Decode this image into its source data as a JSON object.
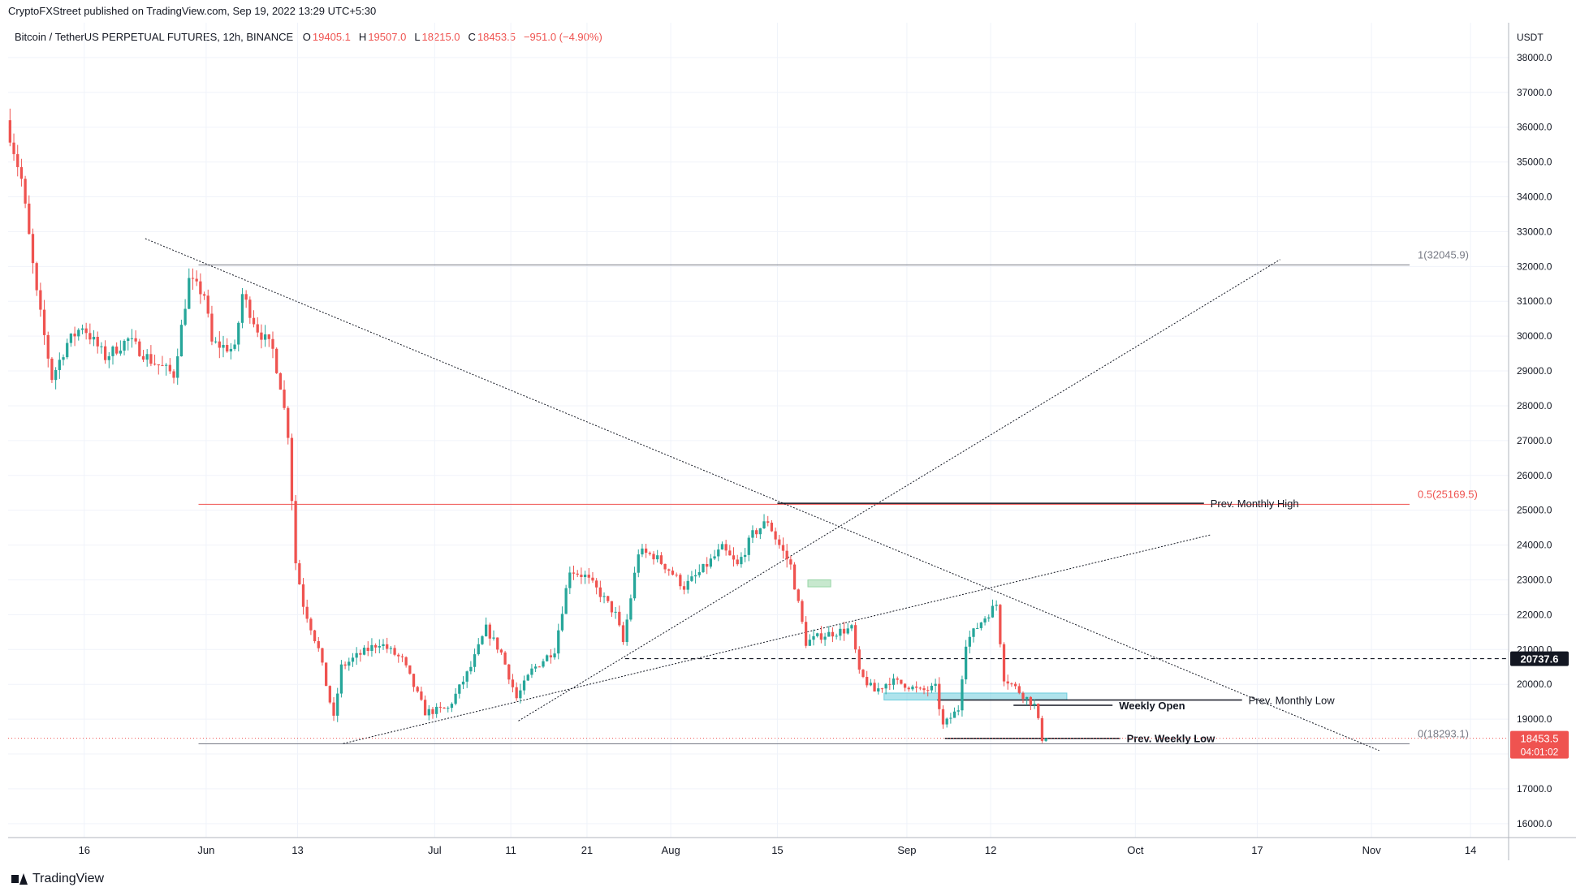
{
  "header": {
    "publisher": "CryptoFXStreet published on TradingView.com, Sep 19, 2022 13:29 UTC+5:30",
    "symbol": "Bitcoin / TetherUS PERPETUAL FUTURES, 12h, BINANCE",
    "ohlc": [
      {
        "label": "O",
        "value": "19405.1"
      },
      {
        "label": "H",
        "value": "19507.0"
      },
      {
        "label": "L",
        "value": "18215.0"
      },
      {
        "label": "C",
        "value": "18453.5"
      },
      {
        "label": "",
        "value": "−951.0 (−4.90%)"
      }
    ]
  },
  "footer": {
    "brand": "TradingView"
  },
  "colors": {
    "up": "#26a69a",
    "down": "#ef5350",
    "fib_half": "#ef5350",
    "grid": "#f0f3fa",
    "line": "#131722"
  },
  "chart_data": {
    "type": "candlestick",
    "currency_label": "USDT",
    "ylim": [
      15600,
      39000
    ],
    "xlim": [
      "2022-05-06",
      "2022-11-19"
    ],
    "y_ticks": [
      "16000.0",
      "17000.0",
      "18000.0",
      "19000.0",
      "20000.0",
      "21000.0",
      "22000.0",
      "23000.0",
      "24000.0",
      "25000.0",
      "26000.0",
      "27000.0",
      "28000.0",
      "29000.0",
      "30000.0",
      "31000.0",
      "32000.0",
      "33000.0",
      "34000.0",
      "35000.0",
      "36000.0",
      "37000.0",
      "38000.0"
    ],
    "x_ticks": [
      {
        "label": "16",
        "date": "2022-05-16"
      },
      {
        "label": "Jun",
        "date": "2022-06-01"
      },
      {
        "label": "13",
        "date": "2022-06-13"
      },
      {
        "label": "Jul",
        "date": "2022-07-01"
      },
      {
        "label": "11",
        "date": "2022-07-11"
      },
      {
        "label": "21",
        "date": "2022-07-21"
      },
      {
        "label": "Aug",
        "date": "2022-08-01"
      },
      {
        "label": "15",
        "date": "2022-08-15"
      },
      {
        "label": "Sep",
        "date": "2022-09-01"
      },
      {
        "label": "12",
        "date": "2022-09-12"
      },
      {
        "label": "Oct",
        "date": "2022-10-01"
      },
      {
        "label": "17",
        "date": "2022-10-17"
      },
      {
        "label": "Nov",
        "date": "2022-11-01"
      },
      {
        "label": "14",
        "date": "2022-11-14"
      }
    ],
    "price_path": [
      [
        "2022-05-06",
        36200
      ],
      [
        "2022-05-08",
        34500
      ],
      [
        "2022-05-10",
        31200
      ],
      [
        "2022-05-12",
        28800
      ],
      [
        "2022-05-14",
        29800
      ],
      [
        "2022-05-16",
        30300
      ],
      [
        "2022-05-19",
        29400
      ],
      [
        "2022-05-22",
        29900
      ],
      [
        "2022-05-25",
        29300
      ],
      [
        "2022-05-28",
        28900
      ],
      [
        "2022-05-30",
        31600
      ],
      [
        "2022-06-01",
        31200
      ],
      [
        "2022-06-02",
        29800
      ],
      [
        "2022-06-05",
        29600
      ],
      [
        "2022-06-06",
        31200
      ],
      [
        "2022-06-08",
        30200
      ],
      [
        "2022-06-10",
        29600
      ],
      [
        "2022-06-11",
        28600
      ],
      [
        "2022-06-12",
        27200
      ],
      [
        "2022-06-13",
        23500
      ],
      [
        "2022-06-14",
        22300
      ],
      [
        "2022-06-16",
        21000
      ],
      [
        "2022-06-18",
        19000
      ],
      [
        "2022-06-19",
        20500
      ],
      [
        "2022-06-21",
        20800
      ],
      [
        "2022-06-24",
        21200
      ],
      [
        "2022-06-27",
        20700
      ],
      [
        "2022-06-30",
        19200
      ],
      [
        "2022-07-03",
        19300
      ],
      [
        "2022-07-06",
        20500
      ],
      [
        "2022-07-08",
        21600
      ],
      [
        "2022-07-10",
        20900
      ],
      [
        "2022-07-12",
        19600
      ],
      [
        "2022-07-14",
        20400
      ],
      [
        "2022-07-17",
        21000
      ],
      [
        "2022-07-19",
        23300
      ],
      [
        "2022-07-21",
        23100
      ],
      [
        "2022-07-23",
        22600
      ],
      [
        "2022-07-25",
        22000
      ],
      [
        "2022-07-26",
        21200
      ],
      [
        "2022-07-28",
        23800
      ],
      [
        "2022-07-30",
        23700
      ],
      [
        "2022-08-01",
        23300
      ],
      [
        "2022-08-03",
        22800
      ],
      [
        "2022-08-05",
        23200
      ],
      [
        "2022-08-08",
        23900
      ],
      [
        "2022-08-10",
        23400
      ],
      [
        "2022-08-12",
        24300
      ],
      [
        "2022-08-14",
        24700
      ],
      [
        "2022-08-15",
        24200
      ],
      [
        "2022-08-17",
        23400
      ],
      [
        "2022-08-19",
        21200
      ],
      [
        "2022-08-21",
        21400
      ],
      [
        "2022-08-23",
        21500
      ],
      [
        "2022-08-25",
        21600
      ],
      [
        "2022-08-26",
        20300
      ],
      [
        "2022-08-28",
        19800
      ],
      [
        "2022-08-30",
        20100
      ],
      [
        "2022-09-01",
        20000
      ],
      [
        "2022-09-03",
        19800
      ],
      [
        "2022-09-05",
        19900
      ],
      [
        "2022-09-06",
        18800
      ],
      [
        "2022-09-08",
        19300
      ],
      [
        "2022-09-09",
        21200
      ],
      [
        "2022-09-11",
        21800
      ],
      [
        "2022-09-13",
        22300
      ],
      [
        "2022-09-14",
        20200
      ],
      [
        "2022-09-16",
        19800
      ],
      [
        "2022-09-18",
        19400
      ],
      [
        "2022-09-19",
        18453.5
      ]
    ],
    "levels": [
      {
        "name": "1(32045.9)",
        "value": 32045.9,
        "from": "2022-05-31",
        "to": "2022-11-06",
        "color": "#787b86"
      },
      {
        "name": "0.5(25169.5)",
        "value": 25169.5,
        "from": "2022-05-31",
        "to": "2022-11-06",
        "color": "#ef5350"
      },
      {
        "name": "0(18293.1)",
        "value": 18293.1,
        "from": "2022-05-31",
        "to": "2022-11-06",
        "color": "#787b86"
      },
      {
        "name": "Prev. Monthly High",
        "value": 25200,
        "from": "2022-08-15",
        "to": "2022-10-10",
        "color": "#131722"
      },
      {
        "name": "Prev. Monthly Low",
        "value": 19550,
        "from": "2022-09-05",
        "to": "2022-10-15",
        "color": "#131722"
      },
      {
        "name": "Weekly Open",
        "value": 19400,
        "from": "2022-09-15",
        "to": "2022-09-28",
        "color": "#131722"
      },
      {
        "name": "Prev. Weekly Low",
        "value": 18450,
        "from": "2022-09-06",
        "to": "2022-09-29",
        "color": "#131722"
      }
    ],
    "dashed_level": {
      "value": 20737.6,
      "label": "20737.6",
      "from": "2022-07-26",
      "to": "2022-11-19"
    },
    "trendlines": [
      {
        "from": [
          "2022-05-24",
          32800
        ],
        "to": [
          "2022-11-02",
          18100
        ]
      },
      {
        "from": [
          "2022-06-19",
          18300
        ],
        "to": [
          "2022-10-11",
          24300
        ]
      },
      {
        "from": [
          "2022-07-12",
          18950
        ],
        "to": [
          "2022-10-20",
          32200
        ]
      }
    ],
    "zones": [
      {
        "from": "2022-08-29",
        "to": "2022-09-22",
        "low": 19550,
        "high": 19750,
        "color": "#5fc8d9"
      },
      {
        "from": "2022-08-19",
        "to": "2022-08-22",
        "low": 22800,
        "high": 23000,
        "color": "#8fd19e"
      }
    ],
    "last_price": {
      "value": 18453.5,
      "label": "18453.5",
      "countdown": "04:01:02"
    }
  }
}
